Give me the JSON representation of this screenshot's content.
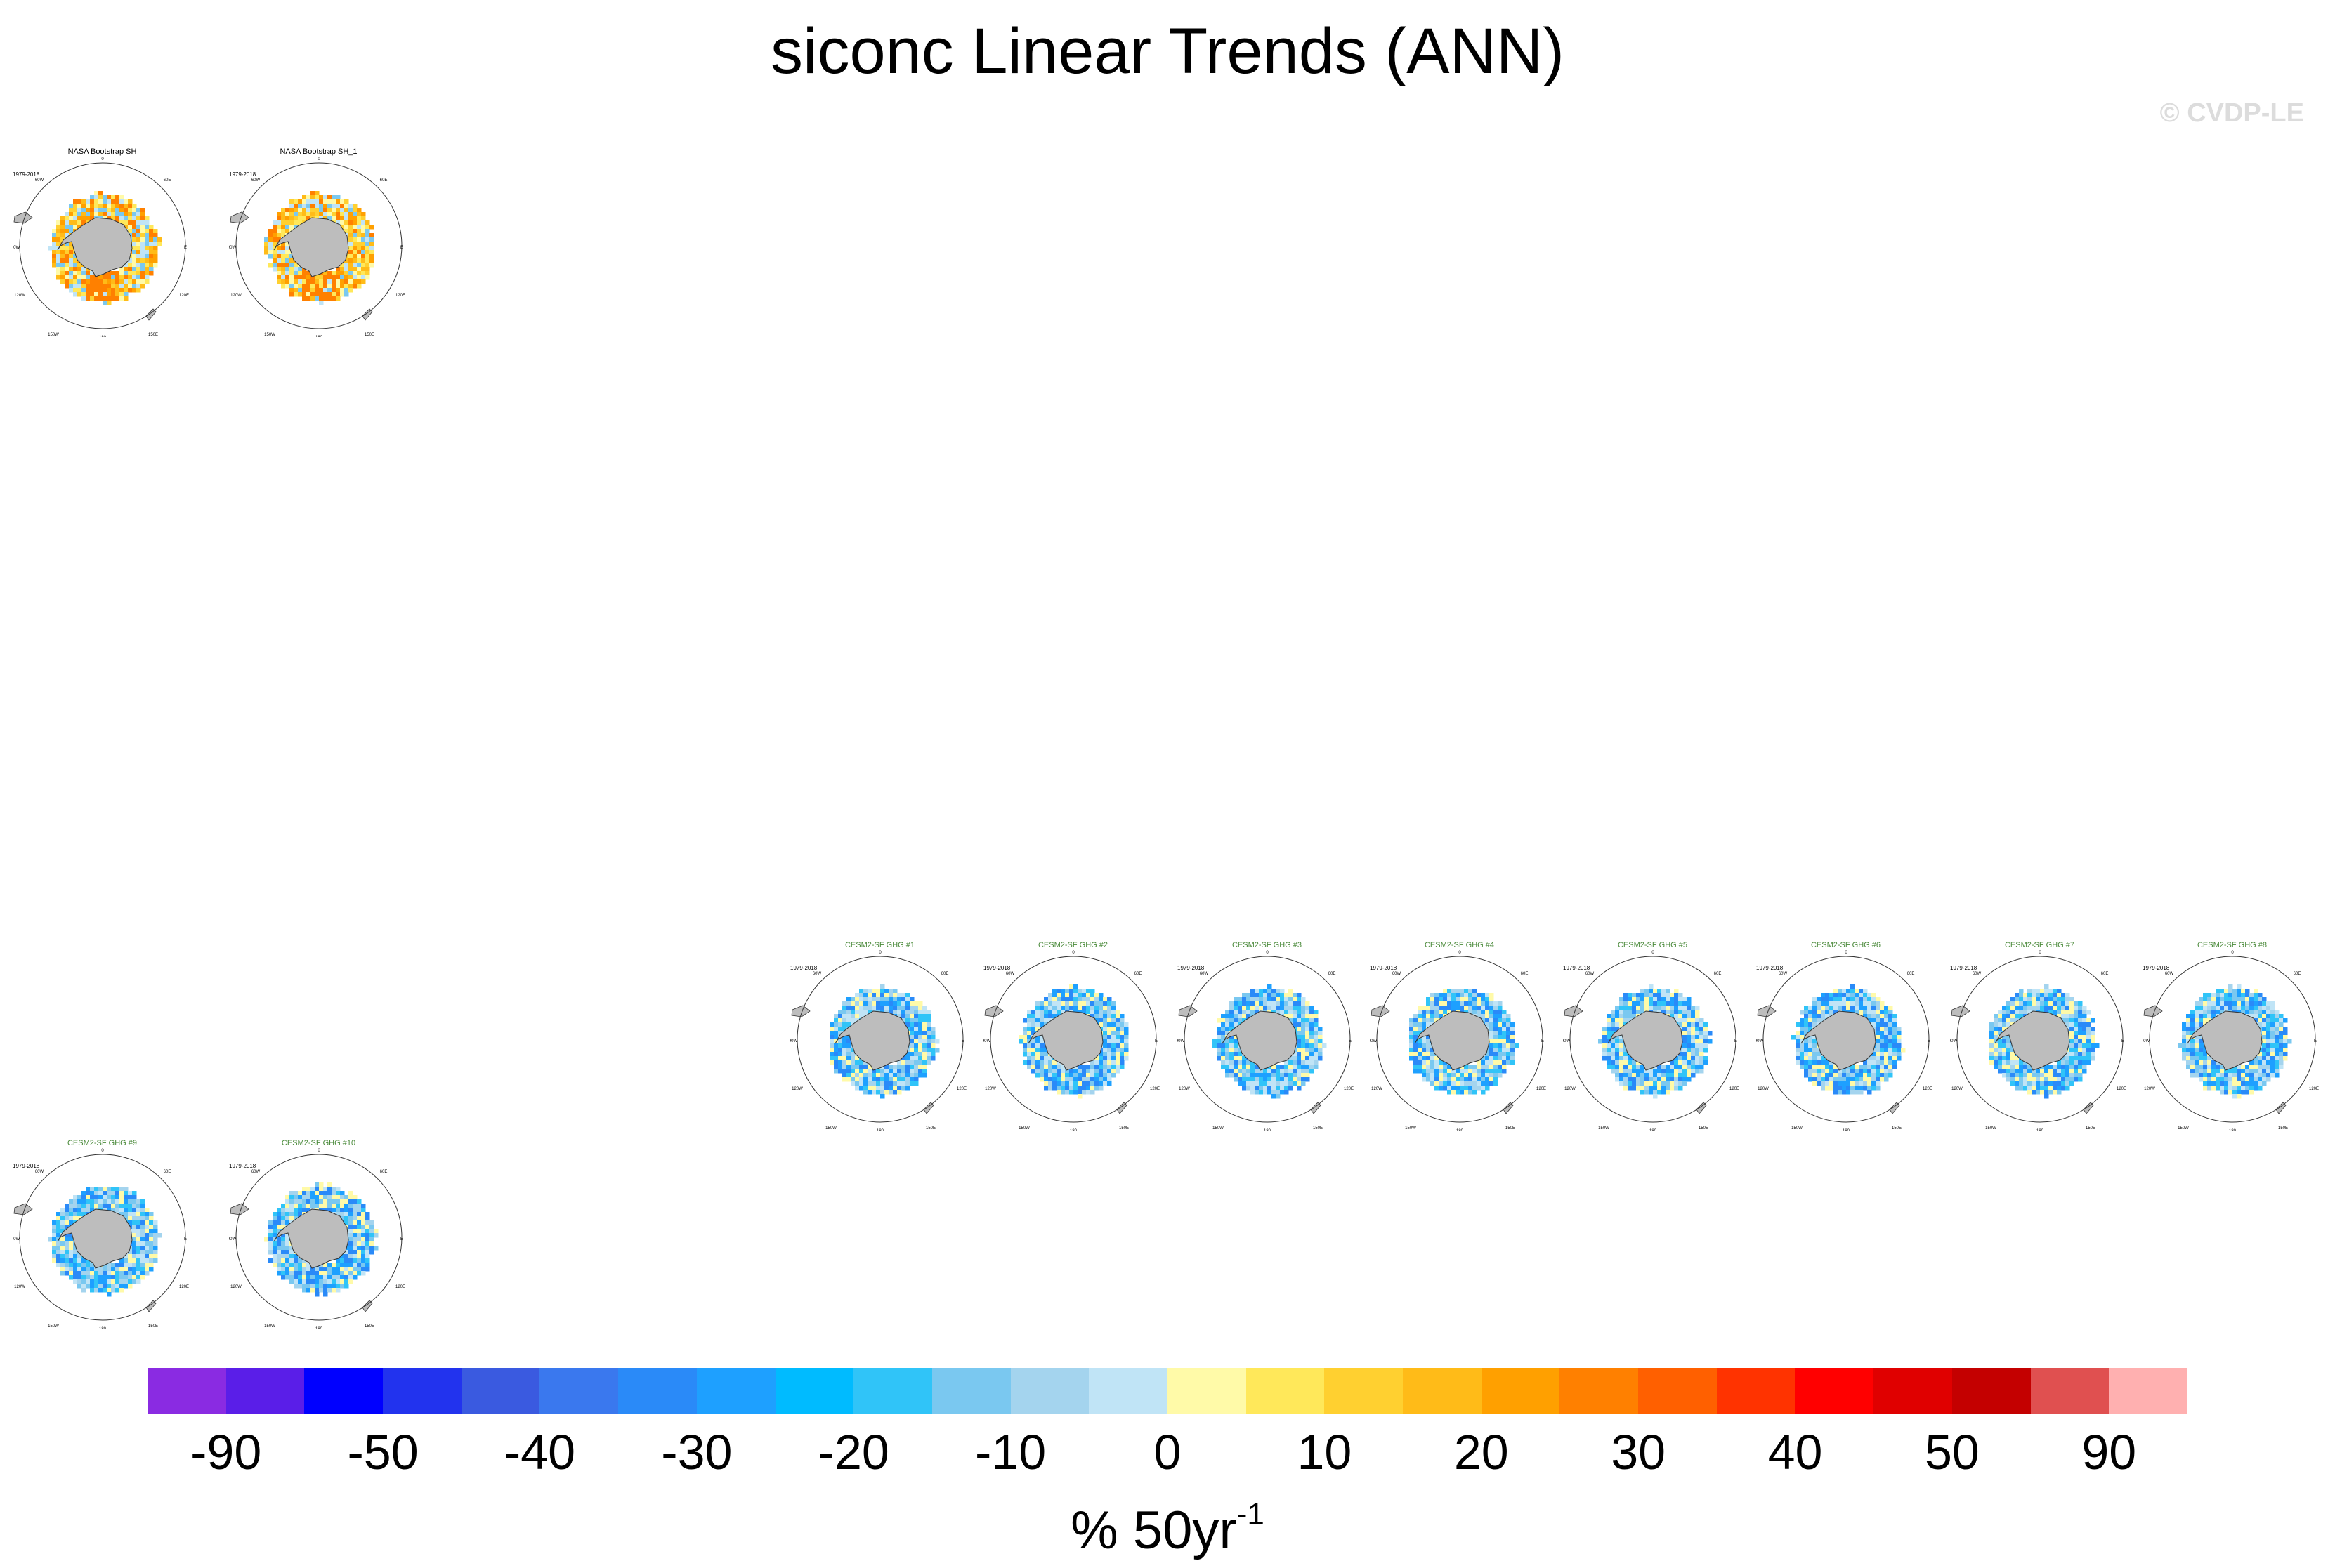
{
  "title": "siconc Linear Trends (ANN)",
  "copyright": "© CVDP-LE",
  "panels": [
    {
      "title": "NASA Bootstrap SH",
      "period": "1979-2018",
      "kind": "obs"
    },
    {
      "title": "NASA Bootstrap SH_1",
      "period": "1979-2018",
      "kind": "obs"
    },
    {
      "title": "CESM2-SF GHG #1",
      "period": "1979-2018",
      "kind": "model"
    },
    {
      "title": "CESM2-SF GHG #2",
      "period": "1979-2018",
      "kind": "model"
    },
    {
      "title": "CESM2-SF GHG #3",
      "period": "1979-2018",
      "kind": "model"
    },
    {
      "title": "CESM2-SF GHG #4",
      "period": "1979-2018",
      "kind": "model"
    },
    {
      "title": "CESM2-SF GHG #5",
      "period": "1979-2018",
      "kind": "model"
    },
    {
      "title": "CESM2-SF GHG #6",
      "period": "1979-2018",
      "kind": "model"
    },
    {
      "title": "CESM2-SF GHG #7",
      "period": "1979-2018",
      "kind": "model"
    },
    {
      "title": "CESM2-SF GHG #8",
      "period": "1979-2018",
      "kind": "model"
    },
    {
      "title": "CESM2-SF GHG #9",
      "period": "1979-2018",
      "kind": "model"
    },
    {
      "title": "CESM2-SF GHG #10",
      "period": "1979-2018",
      "kind": "model"
    }
  ],
  "map_labels": {
    "top": "0",
    "bottom": "180",
    "left": "90W",
    "right": "E",
    "ul": "60W",
    "ur": "60E",
    "ll": "120W",
    "lr": "120E",
    "bl": "150W",
    "br": "150E"
  },
  "colorbar": {
    "colors": [
      "#8a2be2",
      "#5a1ee8",
      "#0000ff",
      "#2233ee",
      "#3a5ae0",
      "#3a78ee",
      "#2a8af8",
      "#1ea0ff",
      "#00bbff",
      "#30c4f8",
      "#7ac8f0",
      "#a4d4ee",
      "#c0e4f6",
      "#fffaa8",
      "#ffe85a",
      "#ffd030",
      "#ffbb18",
      "#ffa000",
      "#ff8000",
      "#ff6000",
      "#ff3300",
      "#ff0000",
      "#e00000",
      "#c40000",
      "#e05050",
      "#ffb0b0"
    ],
    "tick_labels": [
      "-90",
      "-50",
      "-40",
      "-30",
      "-20",
      "-10",
      "0",
      "10",
      "20",
      "30",
      "40",
      "50",
      "90"
    ],
    "units_base": "% 50yr",
    "units_exp": "-1"
  }
}
